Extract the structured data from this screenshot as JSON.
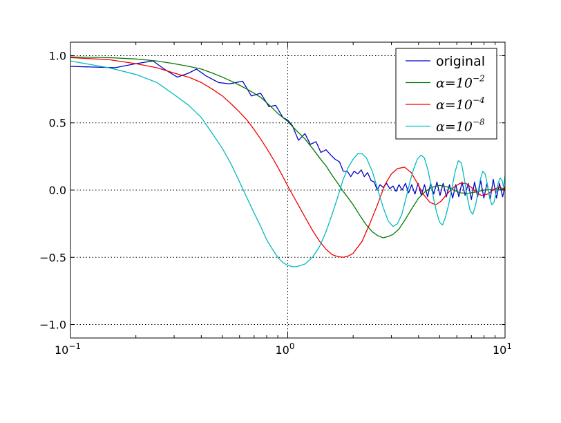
{
  "chart_data": {
    "type": "line",
    "title": "",
    "xlabel": "",
    "ylabel": "",
    "xscale": "log",
    "xlim": [
      0.1,
      10
    ],
    "ylim": [
      -1.1,
      1.1
    ],
    "grid": true,
    "legend_position": "top-right",
    "x_ticks": [
      {
        "value": 0.1,
        "base": "10",
        "exp": "−1"
      },
      {
        "value": 1,
        "base": "10",
        "exp": "0"
      },
      {
        "value": 10,
        "base": "10",
        "exp": "1"
      }
    ],
    "y_ticks": [
      {
        "value": 1.0,
        "label": "1.0"
      },
      {
        "value": 0.5,
        "label": "0.5"
      },
      {
        "value": 0.0,
        "label": "0.0"
      },
      {
        "value": -0.5,
        "label": "−0.5"
      },
      {
        "value": -1.0,
        "label": "−1.0"
      }
    ],
    "series": [
      {
        "name": "original",
        "legend": {
          "text": "original"
        },
        "color": "#0000cc",
        "points": [
          [
            0.1,
            0.92
          ],
          [
            0.16,
            0.91
          ],
          [
            0.2,
            0.94
          ],
          [
            0.24,
            0.96
          ],
          [
            0.27,
            0.9
          ],
          [
            0.31,
            0.84
          ],
          [
            0.35,
            0.87
          ],
          [
            0.38,
            0.9
          ],
          [
            0.42,
            0.85
          ],
          [
            0.48,
            0.8
          ],
          [
            0.54,
            0.79
          ],
          [
            0.62,
            0.81
          ],
          [
            0.68,
            0.7
          ],
          [
            0.75,
            0.72
          ],
          [
            0.82,
            0.62
          ],
          [
            0.88,
            0.63
          ],
          [
            0.95,
            0.54
          ],
          [
            1.0,
            0.52
          ],
          [
            1.05,
            0.48
          ],
          [
            1.12,
            0.37
          ],
          [
            1.2,
            0.42
          ],
          [
            1.27,
            0.34
          ],
          [
            1.35,
            0.36
          ],
          [
            1.42,
            0.28
          ],
          [
            1.5,
            0.3
          ],
          [
            1.58,
            0.26
          ],
          [
            1.65,
            0.23
          ],
          [
            1.73,
            0.21
          ],
          [
            1.8,
            0.14
          ],
          [
            1.88,
            0.14
          ],
          [
            1.95,
            0.1
          ],
          [
            2.02,
            0.14
          ],
          [
            2.1,
            0.12
          ],
          [
            2.18,
            0.15
          ],
          [
            2.25,
            0.1
          ],
          [
            2.33,
            0.13
          ],
          [
            2.42,
            0.07
          ],
          [
            2.5,
            0.06
          ],
          [
            2.58,
            0.0
          ],
          [
            2.66,
            0.04
          ],
          [
            2.75,
            0.02
          ],
          [
            2.85,
            0.05
          ],
          [
            2.95,
            0.01
          ],
          [
            3.05,
            0.03
          ],
          [
            3.15,
            -0.01
          ],
          [
            3.25,
            0.04
          ],
          [
            3.36,
            0.0
          ],
          [
            3.48,
            0.05
          ],
          [
            3.6,
            -0.02
          ],
          [
            3.72,
            0.04
          ],
          [
            3.85,
            -0.03
          ],
          [
            3.98,
            0.05
          ],
          [
            4.12,
            -0.04
          ],
          [
            4.26,
            0.04
          ],
          [
            4.4,
            -0.05
          ],
          [
            4.55,
            0.05
          ],
          [
            4.7,
            -0.03
          ],
          [
            4.86,
            0.06
          ],
          [
            5.02,
            -0.04
          ],
          [
            5.19,
            0.05
          ],
          [
            5.37,
            -0.05
          ],
          [
            5.55,
            0.04
          ],
          [
            5.74,
            -0.06
          ],
          [
            5.93,
            0.04
          ],
          [
            6.13,
            -0.05
          ],
          [
            6.34,
            0.06
          ],
          [
            6.55,
            -0.04
          ],
          [
            6.77,
            0.05
          ],
          [
            7.0,
            -0.07
          ],
          [
            7.24,
            0.06
          ],
          [
            7.48,
            -0.05
          ],
          [
            7.73,
            0.07
          ],
          [
            7.99,
            -0.06
          ],
          [
            8.26,
            0.05
          ],
          [
            8.54,
            -0.07
          ],
          [
            8.83,
            0.08
          ],
          [
            9.13,
            -0.06
          ],
          [
            9.43,
            0.05
          ],
          [
            9.75,
            -0.05
          ],
          [
            10.0,
            0.03
          ]
        ]
      },
      {
        "name": "α=10⁻²",
        "legend": {
          "base": "α=10",
          "exp": "−2"
        },
        "color": "#007700",
        "points": [
          [
            0.1,
            0.99
          ],
          [
            0.15,
            0.985
          ],
          [
            0.2,
            0.975
          ],
          [
            0.25,
            0.96
          ],
          [
            0.3,
            0.94
          ],
          [
            0.35,
            0.92
          ],
          [
            0.4,
            0.9
          ],
          [
            0.45,
            0.87
          ],
          [
            0.5,
            0.84
          ],
          [
            0.55,
            0.81
          ],
          [
            0.6,
            0.78
          ],
          [
            0.65,
            0.75
          ],
          [
            0.7,
            0.72
          ],
          [
            0.75,
            0.69
          ],
          [
            0.8,
            0.65
          ],
          [
            0.85,
            0.61
          ],
          [
            0.9,
            0.57
          ],
          [
            0.95,
            0.54
          ],
          [
            1.0,
            0.51
          ],
          [
            1.1,
            0.44
          ],
          [
            1.2,
            0.38
          ],
          [
            1.3,
            0.31
          ],
          [
            1.4,
            0.24
          ],
          [
            1.5,
            0.18
          ],
          [
            1.6,
            0.11
          ],
          [
            1.7,
            0.05
          ],
          [
            1.8,
            -0.01
          ],
          [
            1.9,
            -0.06
          ],
          [
            2.0,
            -0.11
          ],
          [
            2.15,
            -0.19
          ],
          [
            2.3,
            -0.26
          ],
          [
            2.45,
            -0.31
          ],
          [
            2.6,
            -0.34
          ],
          [
            2.75,
            -0.355
          ],
          [
            2.9,
            -0.345
          ],
          [
            3.05,
            -0.33
          ],
          [
            3.25,
            -0.29
          ],
          [
            3.5,
            -0.21
          ],
          [
            3.75,
            -0.13
          ],
          [
            4.0,
            -0.06
          ],
          [
            4.3,
            -0.01
          ],
          [
            4.6,
            0.02
          ],
          [
            5.0,
            0.035
          ],
          [
            5.4,
            0.025
          ],
          [
            5.8,
            0.0
          ],
          [
            6.2,
            -0.02
          ],
          [
            6.7,
            -0.025
          ],
          [
            7.3,
            -0.015
          ],
          [
            8.0,
            0.0
          ],
          [
            9.0,
            0.005
          ],
          [
            10.0,
            0.005
          ]
        ]
      },
      {
        "name": "α=10⁻⁴",
        "legend": {
          "base": "α=10",
          "exp": "−4"
        },
        "color": "#ee0000",
        "points": [
          [
            0.1,
            0.985
          ],
          [
            0.15,
            0.97
          ],
          [
            0.2,
            0.94
          ],
          [
            0.25,
            0.91
          ],
          [
            0.3,
            0.87
          ],
          [
            0.35,
            0.84
          ],
          [
            0.4,
            0.8
          ],
          [
            0.45,
            0.75
          ],
          [
            0.5,
            0.7
          ],
          [
            0.55,
            0.64
          ],
          [
            0.6,
            0.58
          ],
          [
            0.65,
            0.52
          ],
          [
            0.7,
            0.45
          ],
          [
            0.75,
            0.38
          ],
          [
            0.8,
            0.31
          ],
          [
            0.85,
            0.24
          ],
          [
            0.9,
            0.17
          ],
          [
            0.95,
            0.1
          ],
          [
            1.0,
            0.03
          ],
          [
            1.1,
            -0.09
          ],
          [
            1.2,
            -0.2
          ],
          [
            1.3,
            -0.3
          ],
          [
            1.4,
            -0.38
          ],
          [
            1.5,
            -0.44
          ],
          [
            1.6,
            -0.48
          ],
          [
            1.7,
            -0.495
          ],
          [
            1.8,
            -0.5
          ],
          [
            1.9,
            -0.49
          ],
          [
            2.0,
            -0.47
          ],
          [
            2.2,
            -0.38
          ],
          [
            2.4,
            -0.24
          ],
          [
            2.6,
            -0.1
          ],
          [
            2.8,
            0.04
          ],
          [
            3.0,
            0.12
          ],
          [
            3.2,
            0.16
          ],
          [
            3.45,
            0.17
          ],
          [
            3.7,
            0.13
          ],
          [
            3.95,
            0.05
          ],
          [
            4.2,
            -0.03
          ],
          [
            4.5,
            -0.09
          ],
          [
            4.8,
            -0.11
          ],
          [
            5.1,
            -0.08
          ],
          [
            5.4,
            -0.03
          ],
          [
            5.8,
            0.02
          ],
          [
            6.2,
            0.05
          ],
          [
            6.6,
            0.05
          ],
          [
            7.0,
            0.02
          ],
          [
            7.4,
            -0.02
          ],
          [
            7.8,
            -0.04
          ],
          [
            8.3,
            -0.03
          ],
          [
            8.8,
            0.0
          ],
          [
            9.3,
            0.02
          ],
          [
            10.0,
            0.01
          ]
        ]
      },
      {
        "name": "α=10⁻⁸",
        "legend": {
          "base": "α=10",
          "exp": "−8"
        },
        "color": "#00bbbb",
        "points": [
          [
            0.1,
            0.96
          ],
          [
            0.15,
            0.91
          ],
          [
            0.2,
            0.86
          ],
          [
            0.25,
            0.8
          ],
          [
            0.3,
            0.71
          ],
          [
            0.35,
            0.63
          ],
          [
            0.4,
            0.54
          ],
          [
            0.45,
            0.42
          ],
          [
            0.5,
            0.31
          ],
          [
            0.55,
            0.19
          ],
          [
            0.6,
            0.06
          ],
          [
            0.65,
            -0.06
          ],
          [
            0.7,
            -0.17
          ],
          [
            0.75,
            -0.27
          ],
          [
            0.8,
            -0.37
          ],
          [
            0.85,
            -0.44
          ],
          [
            0.9,
            -0.5
          ],
          [
            0.95,
            -0.54
          ],
          [
            1.0,
            -0.56
          ],
          [
            1.05,
            -0.57
          ],
          [
            1.1,
            -0.57
          ],
          [
            1.2,
            -0.55
          ],
          [
            1.3,
            -0.5
          ],
          [
            1.4,
            -0.42
          ],
          [
            1.5,
            -0.31
          ],
          [
            1.6,
            -0.18
          ],
          [
            1.7,
            -0.05
          ],
          [
            1.8,
            0.08
          ],
          [
            1.9,
            0.17
          ],
          [
            2.0,
            0.23
          ],
          [
            2.1,
            0.27
          ],
          [
            2.2,
            0.27
          ],
          [
            2.3,
            0.24
          ],
          [
            2.45,
            0.14
          ],
          [
            2.6,
            0.0
          ],
          [
            2.75,
            -0.13
          ],
          [
            2.9,
            -0.23
          ],
          [
            3.05,
            -0.27
          ],
          [
            3.2,
            -0.25
          ],
          [
            3.35,
            -0.18
          ],
          [
            3.5,
            -0.06
          ],
          [
            3.65,
            0.06
          ],
          [
            3.8,
            0.16
          ],
          [
            3.95,
            0.23
          ],
          [
            4.1,
            0.26
          ],
          [
            4.25,
            0.24
          ],
          [
            4.4,
            0.16
          ],
          [
            4.55,
            0.05
          ],
          [
            4.7,
            -0.07
          ],
          [
            4.85,
            -0.17
          ],
          [
            5.0,
            -0.24
          ],
          [
            5.15,
            -0.26
          ],
          [
            5.3,
            -0.21
          ],
          [
            5.5,
            -0.11
          ],
          [
            5.7,
            0.02
          ],
          [
            5.9,
            0.14
          ],
          [
            6.1,
            0.22
          ],
          [
            6.3,
            0.2
          ],
          [
            6.5,
            0.08
          ],
          [
            6.7,
            -0.05
          ],
          [
            6.9,
            -0.15
          ],
          [
            7.1,
            -0.18
          ],
          [
            7.3,
            -0.12
          ],
          [
            7.5,
            -0.02
          ],
          [
            7.7,
            0.08
          ],
          [
            7.9,
            0.14
          ],
          [
            8.1,
            0.12
          ],
          [
            8.3,
            0.04
          ],
          [
            8.5,
            -0.06
          ],
          [
            8.7,
            -0.11
          ],
          [
            8.9,
            -0.09
          ],
          [
            9.1,
            -0.02
          ],
          [
            9.3,
            0.05
          ],
          [
            9.5,
            0.09
          ],
          [
            9.7,
            0.07
          ],
          [
            9.85,
            0.02
          ],
          [
            10.0,
            0.11
          ]
        ]
      }
    ]
  }
}
